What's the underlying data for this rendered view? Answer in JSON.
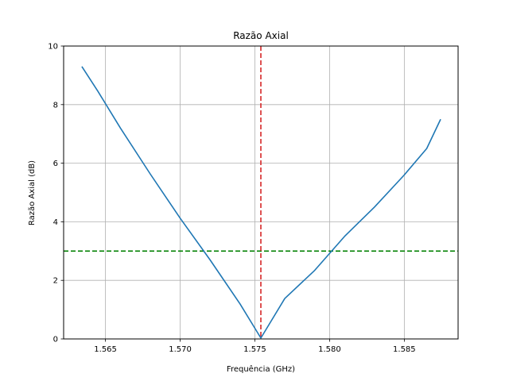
{
  "chart_data": {
    "type": "line",
    "title": "Razão Axial",
    "xlabel": "Frequência (GHz)",
    "ylabel": "Razão Axial (dB)",
    "xlim": [
      1.5622,
      1.5886
    ],
    "ylim": [
      0,
      10
    ],
    "xticks": [
      1.565,
      1.57,
      1.575,
      1.58,
      1.585
    ],
    "xtick_labels": [
      "1.565",
      "1.570",
      "1.575",
      "1.580",
      "1.585"
    ],
    "yticks": [
      0,
      2,
      4,
      6,
      8,
      10
    ],
    "ytick_labels": [
      "0",
      "2",
      "4",
      "6",
      "8",
      "10"
    ],
    "grid": true,
    "series": [
      {
        "color": "#1f77b4",
        "x": [
          1.56342,
          1.5645,
          1.566,
          1.568,
          1.57,
          1.572,
          1.574,
          1.5754,
          1.577,
          1.579,
          1.581,
          1.583,
          1.585,
          1.5865,
          1.58743
        ],
        "y": [
          9.3,
          8.45,
          7.2,
          5.63,
          4.12,
          2.7,
          1.2,
          0.03,
          1.38,
          2.34,
          3.5,
          4.5,
          5.6,
          6.5,
          7.5
        ]
      }
    ],
    "reference_lines": [
      {
        "orientation": "horizontal",
        "value": 3.0,
        "color": "#008000",
        "style": "dashed"
      },
      {
        "orientation": "vertical",
        "value": 1.5754,
        "color": "#d62728",
        "style": "dashed"
      }
    ]
  }
}
